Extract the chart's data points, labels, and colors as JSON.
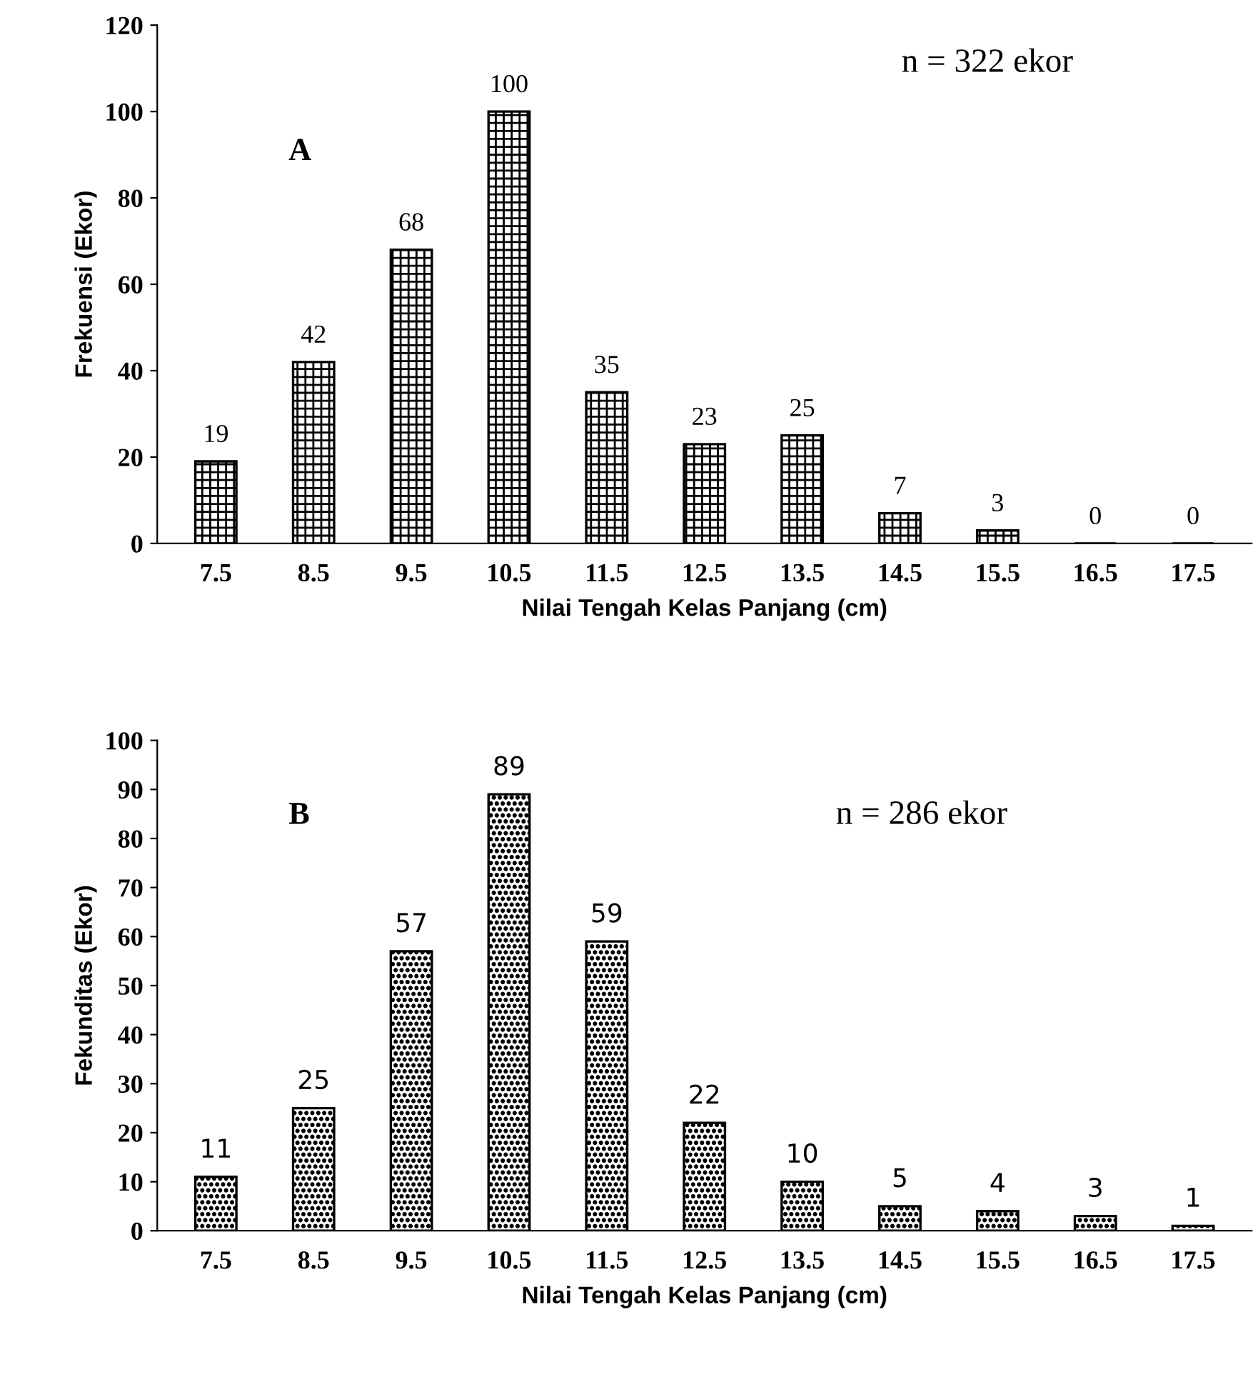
{
  "chart_data": [
    {
      "type": "bar",
      "xlabel": "Nilai Tengah Kelas Panjang (cm)",
      "ylabel": "Frekuensi (Ekor)",
      "categories": [
        "7.5",
        "8.5",
        "9.5",
        "10.5",
        "11.5",
        "12.5",
        "13.5",
        "14.5",
        "15.5",
        "16.5",
        "17.5"
      ],
      "values": [
        19,
        42,
        68,
        100,
        35,
        23,
        25,
        7,
        3,
        0,
        0
      ],
      "color": "#000000",
      "ylim": [
        0,
        120
      ],
      "yticks": [
        0,
        20,
        40,
        60,
        80,
        100,
        120
      ],
      "data_labels": true,
      "grid": false,
      "legend": false,
      "annotations": [
        "A",
        "n = 322 ekor"
      ]
    },
    {
      "type": "bar",
      "xlabel": "Nilai Tengah Kelas Panjang (cm)",
      "ylabel": "Fekunditas (Ekor)",
      "categories": [
        "7.5",
        "8.5",
        "9.5",
        "10.5",
        "11.5",
        "12.5",
        "13.5",
        "14.5",
        "15.5",
        "16.5",
        "17.5"
      ],
      "values": [
        11,
        25,
        57,
        89,
        59,
        22,
        10,
        5,
        4,
        3,
        1
      ],
      "color": "#000000",
      "ylim": [
        0,
        100
      ],
      "yticks": [
        0,
        10,
        20,
        30,
        40,
        50,
        60,
        70,
        80,
        90,
        100
      ],
      "data_labels": true,
      "grid": false,
      "legend": false,
      "annotations": [
        "B",
        "n = 286 ekor"
      ]
    }
  ]
}
